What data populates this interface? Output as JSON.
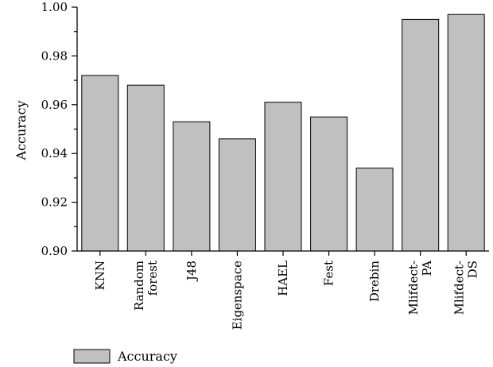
{
  "chart_data": {
    "type": "bar",
    "categories": [
      "KNN",
      "Random\nforest",
      "J48",
      "Eigenspace",
      "HAEL",
      "Fest",
      "Drebin",
      "Mlifdect-\nPA",
      "Mlifdect-\nDS"
    ],
    "series": [
      {
        "name": "Accuracy",
        "values": [
          0.972,
          0.968,
          0.953,
          0.946,
          0.961,
          0.955,
          0.934,
          0.995,
          0.997
        ]
      }
    ],
    "title": "",
    "xlabel": "",
    "ylabel": "Accuracy",
    "ylim": [
      0.9,
      1.0
    ],
    "yticks": [
      "0.90",
      "0.92",
      "0.94",
      "0.96",
      "0.98",
      "1.00"
    ],
    "grid": false,
    "legend_position": "bottom-left",
    "colors": {
      "bar_fill": "#c0c0c0",
      "bar_stroke": "#000000"
    }
  }
}
